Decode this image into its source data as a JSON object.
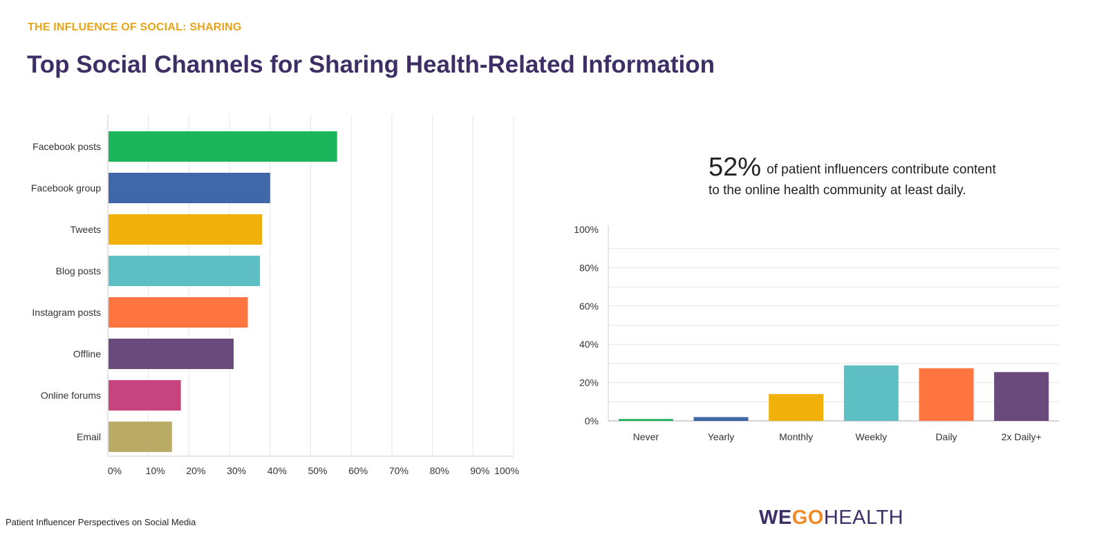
{
  "header": {
    "eyebrow": "THE INFLUENCE OF SOCIAL: SHARING",
    "title": "Top Social Channels for Sharing Health-Related Information"
  },
  "stat": {
    "value": "52%",
    "line1": "of patient influencers contribute content",
    "line2": "to the online health community at least daily."
  },
  "footer": {
    "source": "Patient Influencer Perspectives on Social Media",
    "logo_we": "WE",
    "logo_go": "GO",
    "logo_health": "HEALTH"
  },
  "chart_data": [
    {
      "type": "bar",
      "orientation": "horizontal",
      "categories": [
        "Facebook posts",
        "Facebook group",
        "Tweets",
        "Blog posts",
        "Instagram posts",
        "Offline",
        "Online forums",
        "Email"
      ],
      "values": [
        56.5,
        40,
        38,
        37.5,
        34.5,
        31,
        18,
        15.8
      ],
      "colors": [
        "#1bb55c",
        "#4067a8",
        "#f2b10a",
        "#5dbec3",
        "#fe7540",
        "#6a4a7d",
        "#c6457e",
        "#baab67"
      ],
      "xlim": [
        0,
        100
      ],
      "xticks": [
        "0%",
        "10%",
        "20%",
        "30%",
        "40%",
        "50%",
        "60%",
        "70%",
        "80%",
        "90%",
        "100%"
      ],
      "grid": true
    },
    {
      "type": "bar",
      "orientation": "vertical",
      "categories": [
        "Never",
        "Yearly",
        "Monthly",
        "Weekly",
        "Daily",
        "2x Daily+"
      ],
      "values": [
        1,
        2,
        14,
        29,
        27.5,
        25.5
      ],
      "colors": [
        "#1bb55c",
        "#4067a8",
        "#f2b10a",
        "#5dbec3",
        "#fe7540",
        "#6a4a7d"
      ],
      "ylim": [
        0,
        100
      ],
      "yticks": [
        "0%",
        "20%",
        "40%",
        "60%",
        "80%",
        "100%"
      ],
      "grid": true
    }
  ]
}
